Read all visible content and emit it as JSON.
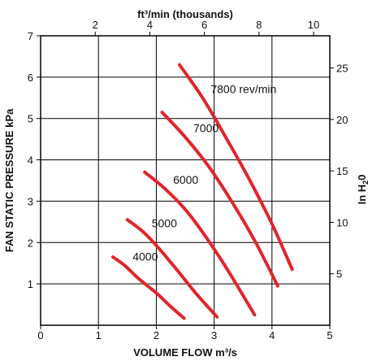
{
  "chart_data": {
    "type": "line",
    "xlabel": "VOLUME FLOW m³/s",
    "ylabel": "FAN STATIC PRESSURE kPa",
    "top_label": "ft³/min (thousands)",
    "right_label_parts": [
      "In H",
      "2",
      "0"
    ],
    "xlim": [
      0,
      5
    ],
    "ylim": [
      0,
      7
    ],
    "x_ticks": [
      "0",
      "1",
      "2",
      "3",
      "4",
      "5"
    ],
    "y_ticks": [
      "1",
      "2",
      "3",
      "4",
      "5",
      "6",
      "7"
    ],
    "top_axis": {
      "factor": 2.11888,
      "ticks": [
        "2",
        "4",
        "6",
        "8",
        "10"
      ]
    },
    "right_axis": {
      "factor": 4.01865,
      "ticks": [
        "5",
        "10",
        "15",
        "20",
        "25"
      ]
    },
    "grid": true,
    "line_color": "#e0252b",
    "series": [
      {
        "name": "4000",
        "label": "4000",
        "x": [
          1.25,
          1.45,
          1.7,
          2.0,
          2.25,
          2.48
        ],
        "y": [
          1.65,
          1.45,
          1.12,
          0.78,
          0.45,
          0.17
        ]
      },
      {
        "name": "5000",
        "label": "5000",
        "x": [
          1.5,
          1.78,
          2.05,
          2.35,
          2.7,
          3.05
        ],
        "y": [
          2.55,
          2.25,
          1.85,
          1.35,
          0.75,
          0.2
        ]
      },
      {
        "name": "6000",
        "label": "6000",
        "x": [
          1.8,
          2.15,
          2.5,
          2.85,
          3.25,
          3.7
        ],
        "y": [
          3.7,
          3.3,
          2.8,
          2.15,
          1.3,
          0.25
        ]
      },
      {
        "name": "7000",
        "label": "7000",
        "x": [
          2.1,
          2.5,
          2.9,
          3.3,
          3.7,
          4.1
        ],
        "y": [
          5.15,
          4.55,
          3.85,
          3.0,
          2.05,
          0.95
        ]
      },
      {
        "name": "7800 rev/min",
        "label": "7800 rev/min",
        "x": [
          2.4,
          2.8,
          3.2,
          3.6,
          4.0,
          4.35
        ],
        "y": [
          6.3,
          5.5,
          4.55,
          3.55,
          2.45,
          1.35
        ]
      }
    ]
  }
}
